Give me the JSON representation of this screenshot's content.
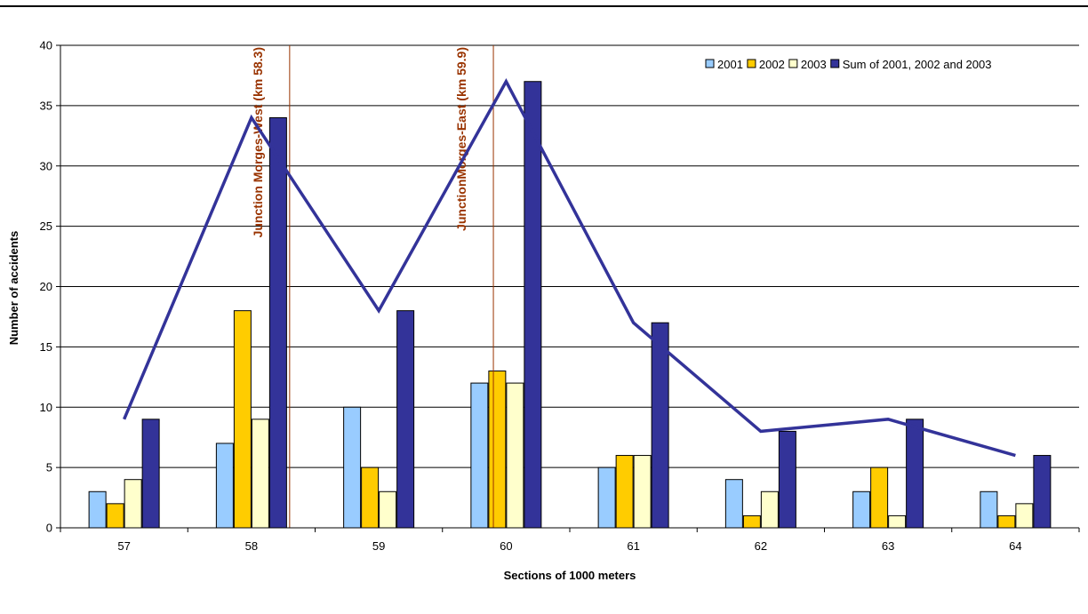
{
  "chart_data": {
    "type": "bar",
    "xlabel": "Sections of 1000 meters",
    "ylabel": "Number of accidents",
    "ylim": [
      0,
      40
    ],
    "yticks": [
      0,
      5,
      10,
      15,
      20,
      25,
      30,
      35,
      40
    ],
    "grid": true,
    "legend_position": "top-right",
    "categories": [
      "57",
      "58",
      "59",
      "60",
      "61",
      "62",
      "63",
      "64"
    ],
    "series": [
      {
        "name": "2001",
        "type": "bar",
        "color": "#99CCFF",
        "values": [
          3,
          7,
          10,
          12,
          5,
          4,
          3,
          3
        ]
      },
      {
        "name": "2002",
        "type": "bar",
        "color": "#FFCC00",
        "values": [
          2,
          18,
          5,
          13,
          6,
          1,
          5,
          1
        ]
      },
      {
        "name": "2003",
        "type": "bar",
        "color": "#FFFFCC",
        "values": [
          4,
          9,
          3,
          12,
          6,
          3,
          1,
          2
        ]
      },
      {
        "name": "Sum of  2001, 2002 and 2003",
        "type": "bar",
        "color": "#333399",
        "values": [
          9,
          34,
          18,
          37,
          17,
          8,
          9,
          6
        ]
      }
    ],
    "line": {
      "color": "#333399",
      "values": [
        9,
        34,
        18,
        37,
        17,
        8,
        9,
        6
      ]
    },
    "annotations": [
      {
        "text": "Junction Morges-West (km 58.3)",
        "x": 58.3,
        "color": "#993300"
      },
      {
        "text": "JunctionMorges-East (km 59.9)",
        "x": 59.9,
        "color": "#993300"
      }
    ]
  }
}
